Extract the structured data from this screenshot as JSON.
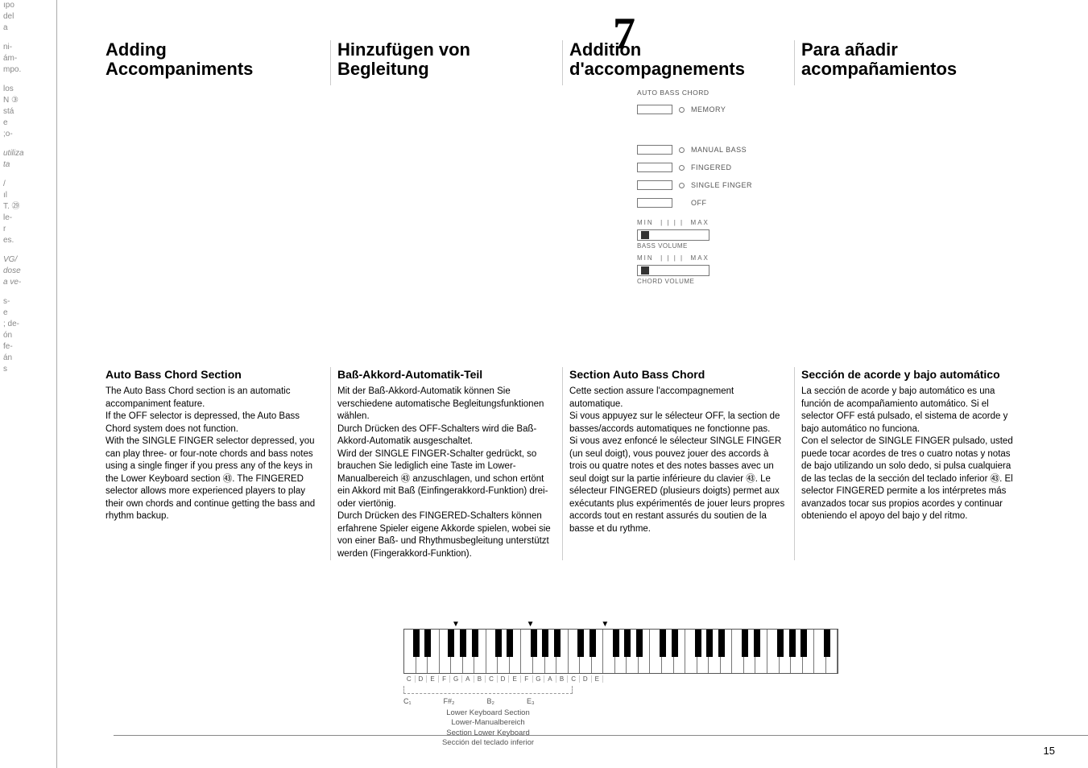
{
  "page_number": "15",
  "big_number": "7",
  "left_cut_fragments": [
    "ıpo\ndel\na",
    "ni-\nám-\nmpo.",
    "los\nN ③\nstá\ne\n;o-",
    "utiliza\nta",
    "/\nıl\nT. ㉙\nle-\nr\nes.",
    "VG/\ndose\na ve-",
    "s-\ne\n; de-\nón\nfe-\nán\ns"
  ],
  "headings": {
    "en": "Adding\nAccompaniments",
    "de": "Hinzufügen von\nBegleitung",
    "fr": "Addition\nd'accompagnements",
    "es": "Para añadir\nacompañamientos"
  },
  "controls": {
    "header": "AUTO BASS CHORD",
    "items": [
      {
        "label": "MEMORY",
        "dot": true
      },
      {
        "label": "MANUAL BASS",
        "dot": true
      },
      {
        "label": "FINGERED",
        "dot": true
      },
      {
        "label": "SINGLE FINGER",
        "dot": true
      },
      {
        "label": "OFF",
        "dot": false
      }
    ],
    "sliders": [
      {
        "min": "MIN",
        "max": "MAX",
        "caption": "BASS VOLUME"
      },
      {
        "min": "MIN",
        "max": "MAX",
        "caption": "CHORD VOLUME"
      }
    ]
  },
  "sections": {
    "en": {
      "title": "Auto Bass Chord Section",
      "body": "The Auto Bass Chord section is an automatic accompaniment feature.\nIf the OFF selector is depressed, the Auto Bass Chord system does not function.\nWith the SINGLE FINGER selector depressed, you can play three- or four-note chords and bass notes using a single finger if you press any of the keys in the Lower Keyboard section ㊸. The FINGERED selector allows more experienced players to play their own chords and continue getting the bass and rhythm backup."
    },
    "de": {
      "title": "Baß-Akkord-Automatik-Teil",
      "body": "Mit der Baß-Akkord-Automatik können Sie verschiedene automatische Begleitungsfunktionen wählen.\nDurch Drücken des OFF-Schalters wird die Baß-Akkord-Automatik ausgeschaltet.\nWird der SINGLE FINGER-Schalter gedrückt, so brauchen Sie lediglich eine Taste im Lower-Manualbereich ㊸ anzuschlagen, und schon ertönt ein Akkord mit Baß (Einfingerakkord-Funktion) drei- oder viertönig.\nDurch Drücken des FINGERED-Schalters können erfahrene Spieler eigene Akkorde spielen, wobei sie von einer Baß- und Rhythmusbegleitung unterstützt werden (Fingerakkord-Funktion)."
    },
    "fr": {
      "title": "Section Auto Bass Chord",
      "body": "Cette section assure l'accompagnement automatique.\nSi vous appuyez sur le sélecteur OFF, la section de basses/accords automatiques ne fonctionne pas.\nSi vous avez enfoncé le sélecteur SINGLE FINGER (un seul doigt), vous pouvez jouer des accords à trois ou quatre notes et des notes basses avec un seul doigt sur la partie inférieure du clavier ㊸. Le sélecteur FINGERED (plusieurs doigts) permet aux exécutants plus expérimentés de jouer leurs propres accords tout en restant assurés du soutien de la basse et du rythme."
    },
    "es": {
      "title": "Sección de acorde y bajo automático",
      "body": "La sección de acorde y bajo automático es una función de acompañamiento automático. Si el selector OFF está pulsado, el sistema de acorde y bajo automático no funciona.\nCon el selector de SINGLE FINGER pulsado, usted puede tocar acordes de tres o cuatro notas y notas de bajo utilizando un solo dedo, si pulsa cualquiera de las teclas de la sección del teclado inferior ㊸. El selector FINGERED permite a los intérpretes más avanzados tocar sus propios acordes y continuar obteniendo el apoyo del bajo y del ritmo."
    }
  },
  "keyboard": {
    "white_keys": 37,
    "letters": [
      "C",
      "D",
      "E",
      "F",
      "G",
      "A",
      "B",
      "C",
      "D",
      "E",
      "F",
      "G",
      "A",
      "B",
      "C",
      "D",
      "E"
    ],
    "marks": [
      "C₁",
      "F#₂",
      "B₂",
      "E₃"
    ],
    "caption": "Lower Keyboard Section\nLower-Manualbereich\nSection Lower Keyboard\nSección del teclado inferior",
    "triangles": "▼  ▼  ▼"
  }
}
